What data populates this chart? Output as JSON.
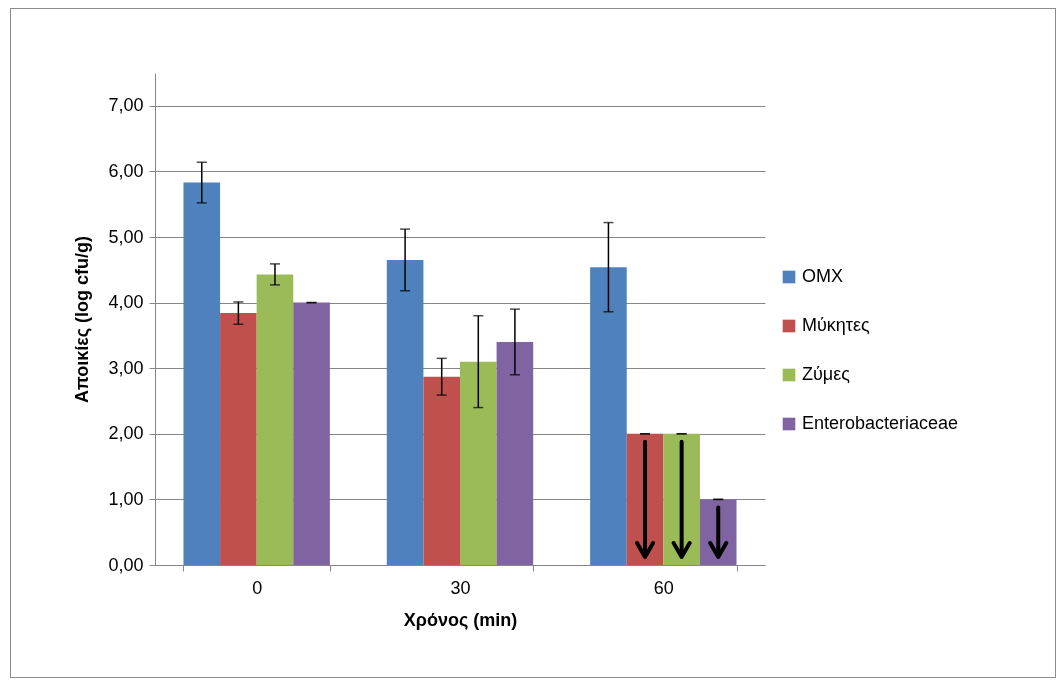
{
  "chart_data": {
    "type": "bar",
    "xlabel": "Χρόνος (min)",
    "ylabel": "Αποικίες (log cfu/g)",
    "categories": [
      "0",
      "30",
      "60"
    ],
    "series": [
      {
        "name": "ΟΜΧ",
        "color": "#4f81bd",
        "values": [
          5.83,
          4.65,
          4.54
        ],
        "errors": [
          0.31,
          0.47,
          0.68
        ]
      },
      {
        "name": "Μύκητες",
        "color": "#c0504d",
        "values": [
          3.84,
          2.87,
          2.0
        ],
        "errors": [
          0.17,
          0.28,
          0
        ]
      },
      {
        "name": "Ζύμες",
        "color": "#9bbb59",
        "values": [
          4.43,
          3.1,
          2.0
        ],
        "errors": [
          0.16,
          0.7,
          0
        ]
      },
      {
        "name": "Enterobacteriaceae",
        "color": "#8064a2",
        "values": [
          4.0,
          3.4,
          1.0
        ],
        "errors": [
          0,
          0.5,
          0
        ]
      }
    ],
    "ylim": [
      0,
      7.5
    ],
    "yticks": [
      {
        "value": 0,
        "label": "0,00"
      },
      {
        "value": 1,
        "label": "1,00"
      },
      {
        "value": 2,
        "label": "2,00"
      },
      {
        "value": 3,
        "label": "3,00"
      },
      {
        "value": 4,
        "label": "4,00"
      },
      {
        "value": 5,
        "label": "5,00"
      },
      {
        "value": 6,
        "label": "6,00"
      },
      {
        "value": 7,
        "label": "7,00"
      }
    ],
    "grid": "y",
    "legend": "right"
  }
}
